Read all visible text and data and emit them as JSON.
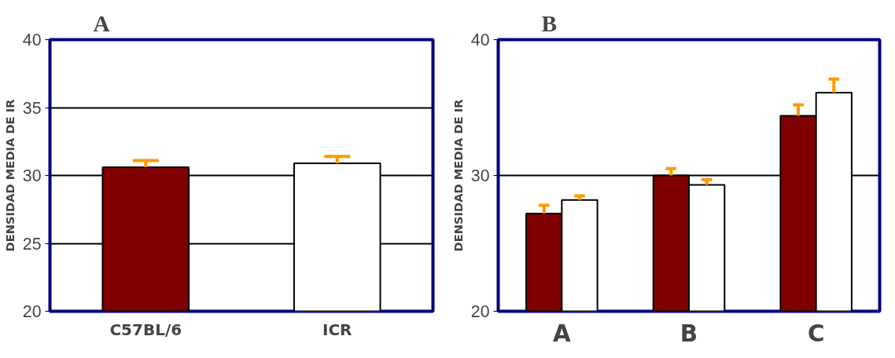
{
  "chart_data": [
    {
      "type": "bar",
      "title": "A",
      "ylabel": "DENSIDAD MEDIA DE IR",
      "categories": [
        "C57BL/6",
        "ICR"
      ],
      "ylim": [
        20,
        40
      ],
      "yticks": [
        20,
        25,
        30,
        35,
        40
      ],
      "grid": "y",
      "series": [
        {
          "color": "#800000",
          "values": [
            30.6,
            null
          ],
          "errors": [
            [
              30.6,
              31.1
            ],
            null
          ]
        },
        {
          "color": "#ffffff",
          "values": [
            null,
            30.9
          ],
          "errors": [
            null,
            [
              30.9,
              31.4
            ]
          ]
        }
      ]
    },
    {
      "type": "bar",
      "title": "B",
      "ylabel": "DENSIDAD MEDIA DE IR",
      "categories": [
        "A",
        "B",
        "C"
      ],
      "ylim": [
        20,
        40
      ],
      "yticks": [
        20,
        30,
        40
      ],
      "grid": "y",
      "series": [
        {
          "color": "#800000",
          "values": [
            27.2,
            30.0,
            34.4
          ],
          "errors": [
            [
              27.2,
              27.8
            ],
            [
              30.0,
              30.5
            ],
            [
              34.4,
              35.2
            ]
          ]
        },
        {
          "color": "#ffffff",
          "values": [
            28.2,
            29.3,
            36.1
          ],
          "errors": [
            [
              28.2,
              28.5
            ],
            [
              29.3,
              29.7
            ],
            [
              36.1,
              37.1
            ]
          ]
        }
      ]
    }
  ]
}
